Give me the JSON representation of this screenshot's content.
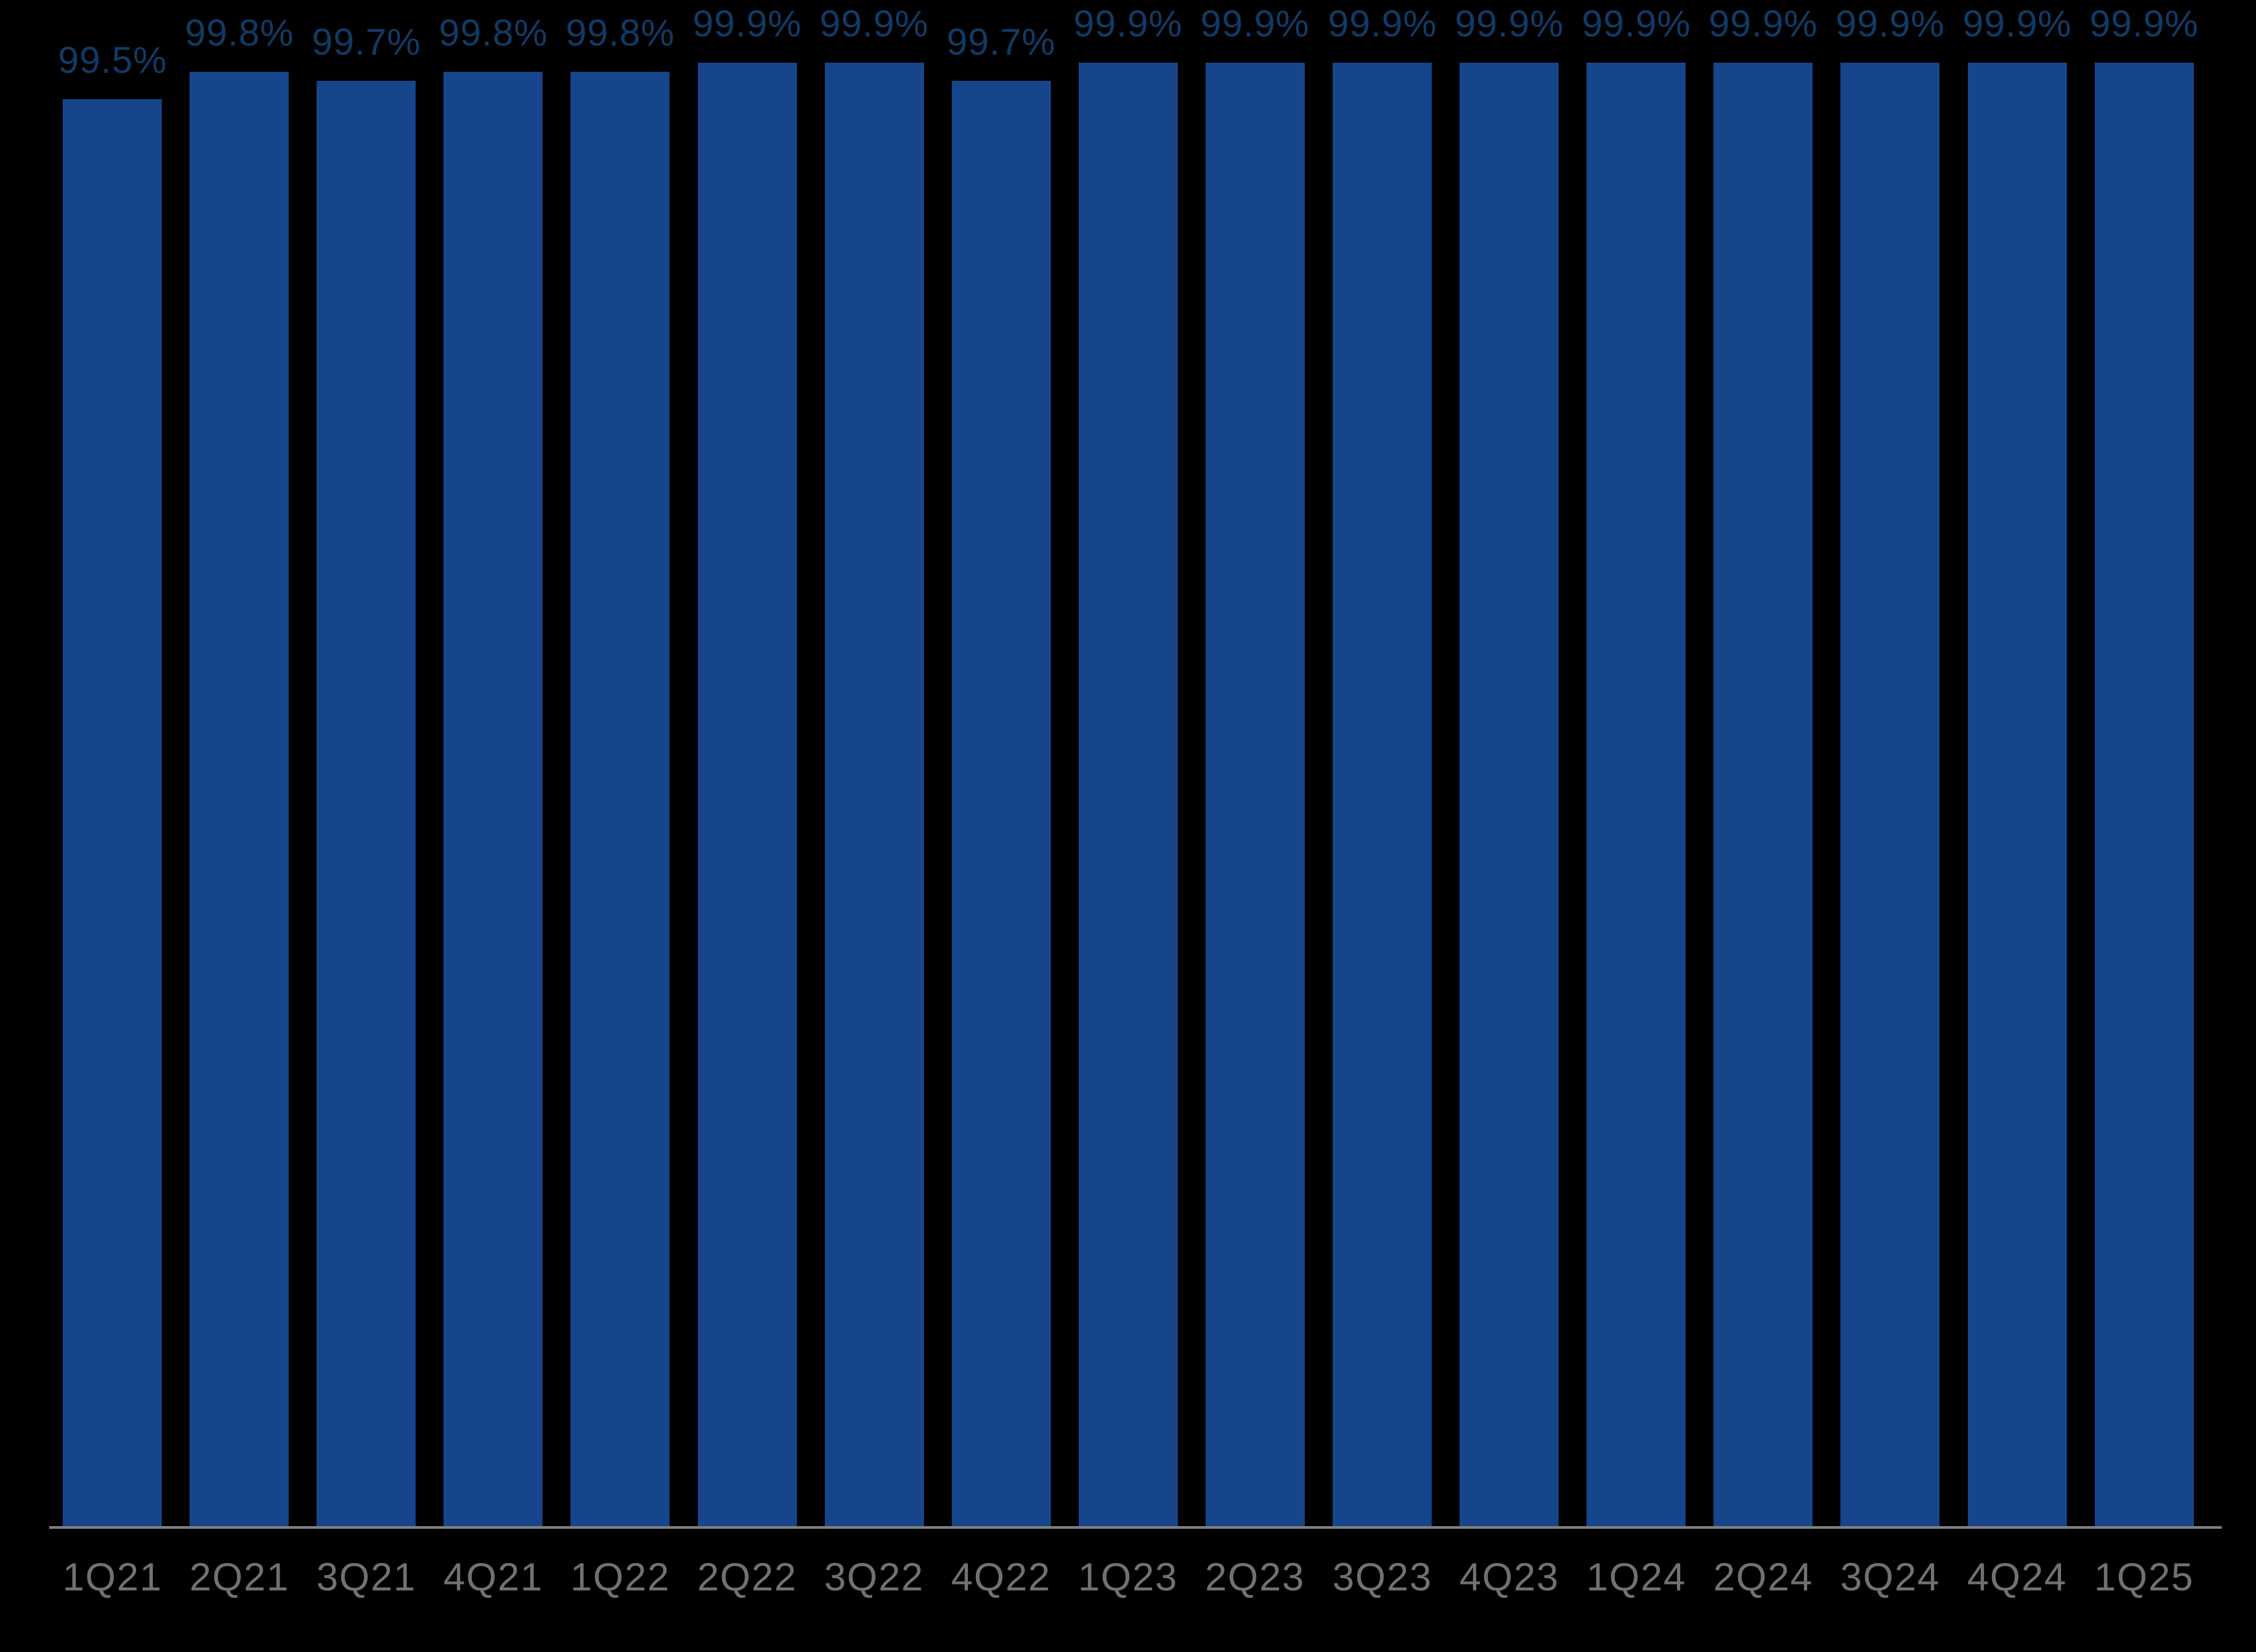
{
  "chart_data": {
    "type": "bar",
    "title": "",
    "xlabel": "",
    "ylabel": "",
    "categories": [
      "1Q21",
      "2Q21",
      "3Q21",
      "4Q21",
      "1Q22",
      "2Q22",
      "3Q22",
      "4Q22",
      "1Q23",
      "2Q23",
      "3Q23",
      "4Q23",
      "1Q24",
      "2Q24",
      "3Q24",
      "4Q24",
      "1Q25"
    ],
    "values": [
      99.5,
      99.8,
      99.7,
      99.8,
      99.8,
      99.9,
      99.9,
      99.7,
      99.9,
      99.9,
      99.9,
      99.9,
      99.9,
      99.9,
      99.9,
      99.9,
      99.9
    ],
    "labels": [
      "99.5%",
      "99.8%",
      "99.7%",
      "99.8%",
      "99.8%",
      "99.9%",
      "99.9%",
      "99.7%",
      "99.9%",
      "99.9%",
      "99.9%",
      "99.9%",
      "99.9%",
      "99.9%",
      "99.9%",
      "99.9%",
      "99.9%"
    ],
    "ylim": [
      83.82,
      100.59
    ],
    "grid": false,
    "legend": false,
    "colors": {
      "background": "#000000",
      "bar": "#16458C",
      "data_label": "#113A64",
      "axis_line": "#7F7F7F",
      "tick_label": "#717171"
    }
  }
}
